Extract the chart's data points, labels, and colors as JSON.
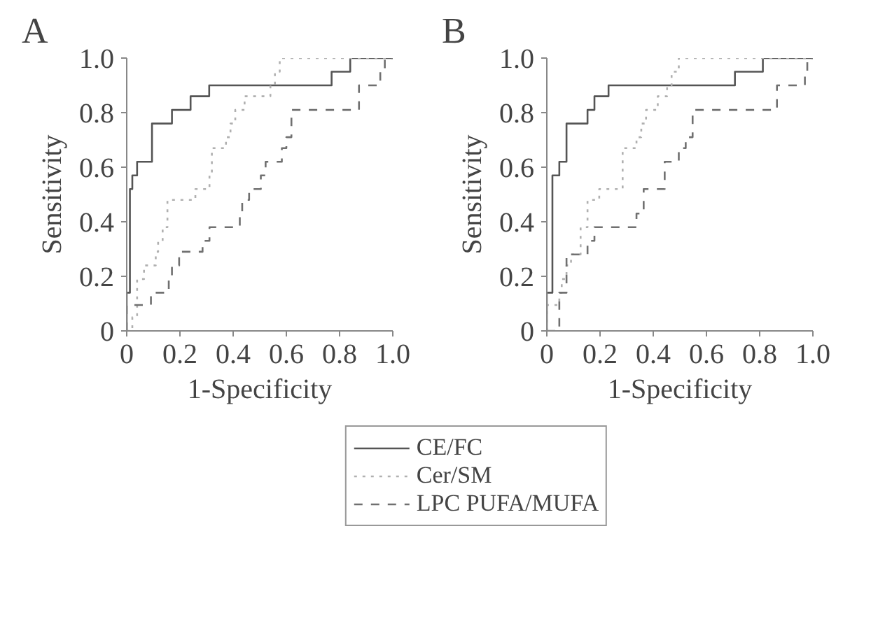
{
  "chart_data": [
    {
      "type": "step",
      "title": "A",
      "xlabel": "1-Specificity",
      "ylabel": "Sensitivity",
      "xlim": [
        0,
        1.0
      ],
      "ylim": [
        0,
        1.0
      ],
      "xticks": [
        0,
        0.2,
        0.4,
        0.6,
        0.8,
        {
          "value": 1,
          "label": "1.0"
        }
      ],
      "yticks": [
        0,
        0.2,
        0.4,
        0.6,
        0.8,
        {
          "value": 1,
          "label": "1.0"
        }
      ],
      "legend": "bottom",
      "series": [
        {
          "name": "CE/FC",
          "color": "#555555",
          "line_style": "solid",
          "x": [
            0,
            0,
            0.012,
            0.021,
            0.039,
            0.095,
            0.17,
            0.24,
            0.31,
            0.77,
            0.84,
            1.0
          ],
          "values": [
            0,
            0.14,
            0.52,
            0.57,
            0.62,
            0.76,
            0.81,
            0.86,
            0.9,
            0.95,
            1.0,
            1.0
          ]
        },
        {
          "name": "Cer/SM",
          "color": "#b0b0b0",
          "line_style": "dotted",
          "x": [
            0,
            0.021,
            0.039,
            0.065,
            0.109,
            0.118,
            0.135,
            0.153,
            0.258,
            0.311,
            0.32,
            0.373,
            0.39,
            0.408,
            0.443,
            0.54,
            0.557,
            0.575,
            1.0
          ],
          "values": [
            0,
            0.05,
            0.19,
            0.24,
            0.29,
            0.33,
            0.38,
            0.48,
            0.52,
            0.57,
            0.67,
            0.71,
            0.76,
            0.81,
            0.86,
            0.9,
            0.95,
            1.0,
            1.0
          ]
        },
        {
          "name": "LPC PUFA/MUFA",
          "color": "#707070",
          "line_style": "dashed",
          "x": [
            0,
            0,
            0.091,
            0.158,
            0.17,
            0.197,
            0.285,
            0.311,
            0.425,
            0.434,
            0.46,
            0.504,
            0.522,
            0.583,
            0.6,
            0.619,
            0.873,
            0.953,
            0.97,
            1.0
          ],
          "values": [
            0,
            0.095,
            0.14,
            0.19,
            0.24,
            0.29,
            0.33,
            0.38,
            0.43,
            0.48,
            0.52,
            0.57,
            0.62,
            0.67,
            0.71,
            0.81,
            0.9,
            0.95,
            1.0,
            1.0
          ]
        }
      ]
    },
    {
      "type": "step",
      "title": "B",
      "xlabel": "1-Specificity",
      "ylabel": "Sensitivity",
      "xlim": [
        0,
        1.0
      ],
      "ylim": [
        0,
        1.0
      ],
      "xticks": [
        0,
        0.2,
        0.4,
        0.6,
        0.8,
        {
          "value": 1,
          "label": "1.0"
        }
      ],
      "yticks": [
        0,
        0.2,
        0.4,
        0.6,
        0.8,
        {
          "value": 1,
          "label": "1.0"
        }
      ],
      "series": [
        {
          "color": "#555555",
          "line_style": "solid",
          "x": [
            0,
            0,
            0.021,
            0.047,
            0.074,
            0.153,
            0.179,
            0.232,
            0.707,
            0.812,
            1.0
          ],
          "values": [
            0,
            0.14,
            0.57,
            0.62,
            0.76,
            0.81,
            0.86,
            0.9,
            0.95,
            1.0,
            1.0
          ]
        },
        {
          "color": "#b0b0b0",
          "line_style": "dotted",
          "x": [
            0,
            0,
            0.047,
            0.056,
            0.074,
            0.091,
            0.127,
            0.153,
            0.197,
            0.285,
            0.337,
            0.355,
            0.373,
            0.417,
            0.452,
            0.469,
            0.496,
            1.0
          ],
          "values": [
            0,
            0.095,
            0.14,
            0.19,
            0.24,
            0.28,
            0.38,
            0.48,
            0.52,
            0.67,
            0.71,
            0.76,
            0.81,
            0.86,
            0.9,
            0.95,
            1.0,
            1.0
          ]
        },
        {
          "color": "#707070",
          "line_style": "dashed",
          "x": [
            0,
            0.047,
            0.074,
            0.153,
            0.179,
            0.337,
            0.364,
            0.443,
            0.496,
            0.522,
            0.548,
            0.865,
            0.97,
            0.979,
            1.0
          ],
          "values": [
            0,
            0.14,
            0.28,
            0.33,
            0.38,
            0.43,
            0.52,
            0.62,
            0.67,
            0.71,
            0.81,
            0.9,
            0.95,
            1.0,
            1.0
          ]
        }
      ]
    }
  ]
}
